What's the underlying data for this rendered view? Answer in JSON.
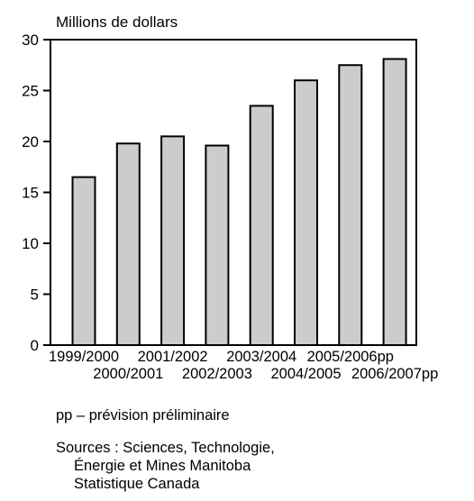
{
  "chart_data": {
    "type": "bar",
    "ylabel": "Millions de dollars",
    "categories": [
      "1999/2000",
      "2000/2001",
      "2001/2002",
      "2002/2003",
      "2003/2004",
      "2004/2005",
      "2005/2006pp",
      "2006/2007pp"
    ],
    "values": [
      16.5,
      19.8,
      20.5,
      19.6,
      23.5,
      26.0,
      27.5,
      28.1
    ],
    "ylim": [
      0,
      30
    ],
    "yticks": [
      0,
      5,
      10,
      15,
      20,
      25,
      30
    ],
    "grid": false,
    "bar_color": "#cccccc"
  },
  "footnote": "pp – prévision préliminaire",
  "sources": {
    "line1": "Sources : Sciences, Technologie,",
    "line2": "Énergie et Mines Manitoba",
    "line3": "Statistique Canada"
  }
}
